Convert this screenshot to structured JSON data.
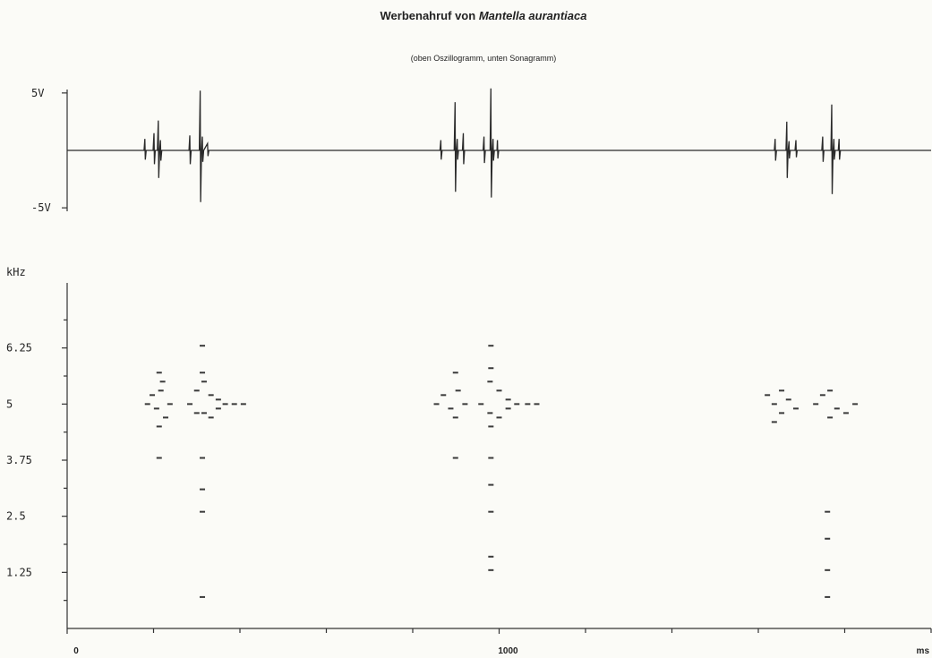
{
  "chart_data": [
    {
      "type": "line",
      "title": "Werbenahruf von",
      "title_species": "Mantella aurantiaca",
      "subtitle": "(oben Oszillogramm, unten Sonagramm)",
      "xlim": [
        0,
        2000
      ],
      "ylim": [
        -5.3,
        5.3
      ],
      "yticks": [
        {
          "value": 5,
          "label": "5V"
        },
        {
          "value": -5,
          "label": "-5V"
        }
      ],
      "color": "#2a2a2a",
      "x": [
        0,
        178,
        180,
        181,
        183,
        199,
        201,
        202,
        204,
        209,
        211,
        212,
        214,
        216,
        217,
        219,
        282,
        284,
        285,
        287,
        306,
        308,
        309,
        311,
        313,
        314,
        316,
        325,
        326,
        328,
        863,
        865,
        866,
        868,
        896,
        898,
        899,
        901,
        903,
        904,
        906,
        915,
        917,
        918,
        920,
        963,
        965,
        966,
        968,
        979,
        981,
        982,
        984,
        986,
        987,
        989,
        995,
        996,
        997,
        999,
        1637,
        1639,
        1640,
        1642,
        1664,
        1666,
        1667,
        1669,
        1671,
        1672,
        1674,
        1685,
        1687,
        1688,
        1690,
        1747,
        1749,
        1750,
        1752,
        1768,
        1770,
        1771,
        1773,
        1775,
        1776,
        1778,
        1785,
        1787,
        1788,
        1790,
        2000
      ],
      "values": [
        0,
        0,
        1.0,
        -0.8,
        0,
        0,
        1.5,
        -1.2,
        0,
        0,
        2.6,
        -2.4,
        0,
        0.9,
        -0.9,
        0,
        0,
        1.3,
        -1.2,
        0,
        0,
        5.2,
        -4.5,
        0,
        1.2,
        -1.0,
        0,
        0.6,
        -0.5,
        0,
        0,
        0.9,
        -0.8,
        0,
        0,
        4.2,
        -3.6,
        0,
        1.0,
        -0.8,
        0,
        0,
        1.5,
        -1.2,
        0,
        0,
        1.2,
        -1.1,
        0,
        0,
        5.4,
        -4.1,
        0,
        1.0,
        -0.9,
        0,
        0,
        0.9,
        -0.7,
        0,
        0,
        1.0,
        -0.9,
        0,
        0,
        2.5,
        -2.4,
        0,
        0.8,
        -0.7,
        0,
        0,
        0.9,
        -0.6,
        0,
        0,
        1.2,
        -1.0,
        0,
        0,
        4.0,
        -3.8,
        0,
        1.0,
        -0.8,
        0,
        0,
        1.0,
        -0.8,
        0,
        0
      ]
    },
    {
      "type": "scatter",
      "ylabel": "kHz",
      "xlabel": "ms",
      "xlim": [
        0,
        2000
      ],
      "ylim": [
        0,
        7.7
      ],
      "xticks": [
        0,
        1000
      ],
      "xminor_ticks": [
        200,
        400,
        600,
        800,
        1200,
        1400,
        1600,
        1800,
        2000
      ],
      "yticks": [
        1.25,
        2.5,
        3.75,
        5,
        6.25
      ],
      "yminor_ticks": [
        0.625,
        1.875,
        3.125,
        4.375,
        5.625,
        6.875
      ],
      "color": "#3a3a3a",
      "x": [
        186,
        197,
        207,
        217,
        228,
        238,
        213,
        221,
        213,
        213,
        284,
        300,
        317,
        333,
        350,
        366,
        387,
        408,
        300,
        317,
        333,
        350,
        313,
        313,
        313,
        313,
        313,
        313,
        855,
        871,
        888,
        905,
        921,
        899,
        899,
        899,
        958,
        979,
        1000,
        1021,
        1041,
        1066,
        1087,
        979,
        1000,
        1021,
        981,
        981,
        981,
        981,
        981,
        981,
        981,
        981,
        1621,
        1637,
        1654,
        1670,
        1687,
        1637,
        1654,
        1733,
        1749,
        1766,
        1782,
        1803,
        1824,
        1766,
        1760,
        1760,
        1760,
        1760
      ],
      "values": [
        5.0,
        5.2,
        4.9,
        5.3,
        4.7,
        5.0,
        4.5,
        5.5,
        3.8,
        5.7,
        5.0,
        5.3,
        5.5,
        5.2,
        5.1,
        5.0,
        5.0,
        5.0,
        4.8,
        4.8,
        4.7,
        4.9,
        5.7,
        6.3,
        3.8,
        3.1,
        2.6,
        0.7,
        5.0,
        5.2,
        4.9,
        5.3,
        5.0,
        4.7,
        5.7,
        3.8,
        5.0,
        5.5,
        5.3,
        5.1,
        5.0,
        5.0,
        5.0,
        4.8,
        4.7,
        4.9,
        6.3,
        5.8,
        4.5,
        3.8,
        3.2,
        2.6,
        1.6,
        1.3,
        5.2,
        5.0,
        4.8,
        5.1,
        4.9,
        4.6,
        5.3,
        5.0,
        5.2,
        5.3,
        4.9,
        4.8,
        5.0,
        4.7,
        2.6,
        2.0,
        1.3,
        0.7
      ]
    }
  ]
}
